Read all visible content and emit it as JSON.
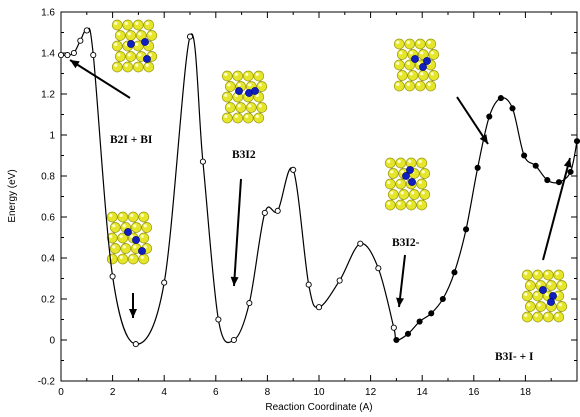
{
  "chart_data": {
    "type": "line",
    "xlabel": "Reaction Coordinate (A)",
    "ylabel": "Energy (eV)",
    "xlim": [
      0,
      20
    ],
    "ylim": [
      -0.2,
      1.6
    ],
    "x_ticks": [
      0,
      2,
      4,
      6,
      8,
      10,
      12,
      14,
      16,
      18
    ],
    "x_tick_labels": [
      "0",
      "2",
      "4",
      "6",
      "8",
      "10",
      "12",
      "14",
      "16",
      "18"
    ],
    "y_ticks": [
      -0.2,
      0,
      0.2,
      0.4,
      0.6,
      0.8,
      1,
      1.2,
      1.4,
      1.6
    ],
    "y_tick_labels": [
      "-0.2",
      "0",
      "0.2",
      "0.4",
      "0.6",
      "0.8",
      "1",
      "1.2",
      "1.4",
      "1.6"
    ],
    "grid": false,
    "series": [
      {
        "marker": "open-circle",
        "x": [
          0,
          0.25,
          0.5,
          0.75,
          1.0,
          1.25,
          2.0,
          2.9,
          4.0,
          5.0,
          5.5,
          6.1,
          6.7,
          7.3,
          7.9,
          8.4,
          9.0,
          9.6,
          10.0,
          10.8,
          11.6,
          12.3,
          12.9
        ],
        "y": [
          1.39,
          1.39,
          1.4,
          1.46,
          1.51,
          1.39,
          0.31,
          -0.02,
          0.28,
          1.48,
          0.87,
          0.1,
          0.0,
          0.18,
          0.62,
          0.63,
          0.83,
          0.27,
          0.16,
          0.29,
          0.47,
          0.35,
          0.06
        ]
      },
      {
        "marker": "filled-circle",
        "x": [
          13.0,
          13.45,
          13.9,
          14.35,
          14.8,
          15.25,
          15.7,
          16.15,
          16.6,
          17.05,
          17.5,
          17.95,
          18.4,
          18.85,
          19.3,
          19.75,
          20.0
        ],
        "y": [
          0.0,
          0.03,
          0.09,
          0.13,
          0.2,
          0.33,
          0.54,
          0.84,
          1.09,
          1.18,
          1.13,
          0.9,
          0.85,
          0.78,
          0.77,
          0.82,
          0.97
        ]
      }
    ],
    "annotations": [
      {
        "text": "B2I + BI"
      },
      {
        "text": "B3I2"
      },
      {
        "text": "B3I2-"
      },
      {
        "text": "B3I- + I"
      }
    ]
  }
}
